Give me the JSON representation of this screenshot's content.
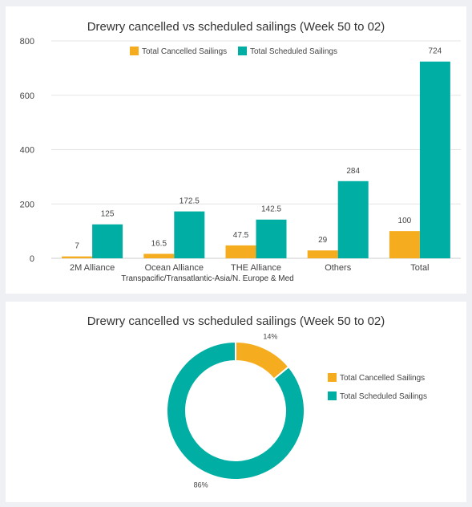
{
  "colors": {
    "cancelled": "#f5ad1f",
    "scheduled": "#00aea4",
    "grid": "#e6e6e6",
    "axis": "#cccccc",
    "text": "#444444"
  },
  "chart_data": [
    {
      "type": "bar",
      "title": "Drewry cancelled vs scheduled sailings (Week 50 to 02)",
      "xlabel": "Transpacific/Transatlantic-Asia/N. Europe & Med",
      "ylabel": "",
      "categories": [
        "2M Alliance",
        "Ocean Alliance",
        "THE Alliance",
        "Others",
        "Total"
      ],
      "series": [
        {
          "name": "Total Cancelled Sailings",
          "values": [
            7,
            16.5,
            47.5,
            29,
            100
          ],
          "labels": [
            "7",
            "16.5",
            "47.5",
            "29",
            "100"
          ]
        },
        {
          "name": "Total Scheduled Sailings",
          "values": [
            125,
            172.5,
            142.5,
            284,
            724
          ],
          "labels": [
            "125",
            "172.5",
            "142.5",
            "284",
            "724"
          ]
        }
      ],
      "ylim": [
        0,
        800
      ],
      "yticks": [
        "0",
        "200",
        "400",
        "600",
        "800"
      ],
      "grid": true,
      "legend": "top-center"
    },
    {
      "type": "pie",
      "donut": true,
      "title": "Drewry cancelled vs scheduled sailings (Week 50 to 02)",
      "labels": [
        "Total Cancelled Sailings",
        "Total Scheduled Sailings"
      ],
      "values": [
        14,
        86
      ],
      "value_labels": [
        "14%",
        "86%"
      ],
      "legend": "right"
    }
  ]
}
